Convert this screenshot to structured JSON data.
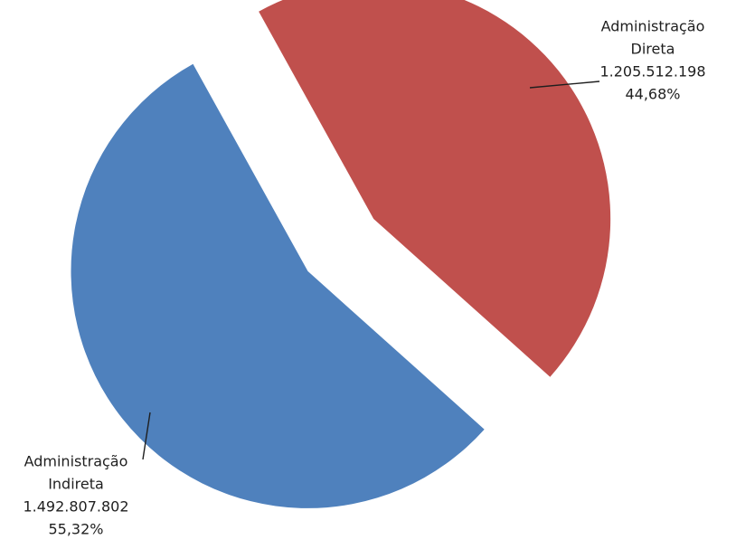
{
  "chart_data": {
    "type": "pie",
    "title": "",
    "exploded": true,
    "legend": "none",
    "data_labels": "outside-with-leader-lines",
    "slices": [
      {
        "category": [
          "Administração",
          "Direta"
        ],
        "value": 1205512198,
        "value_label": "1.205.512.198",
        "percent": 44.68,
        "percent_label": "44,68%",
        "color": "#c0504d"
      },
      {
        "category": [
          "Administração",
          "Indireta"
        ],
        "value": 1492807802,
        "value_label": "1.492.807.802",
        "percent": 55.32,
        "percent_label": "55,32%",
        "color": "#4f81bd"
      }
    ]
  }
}
